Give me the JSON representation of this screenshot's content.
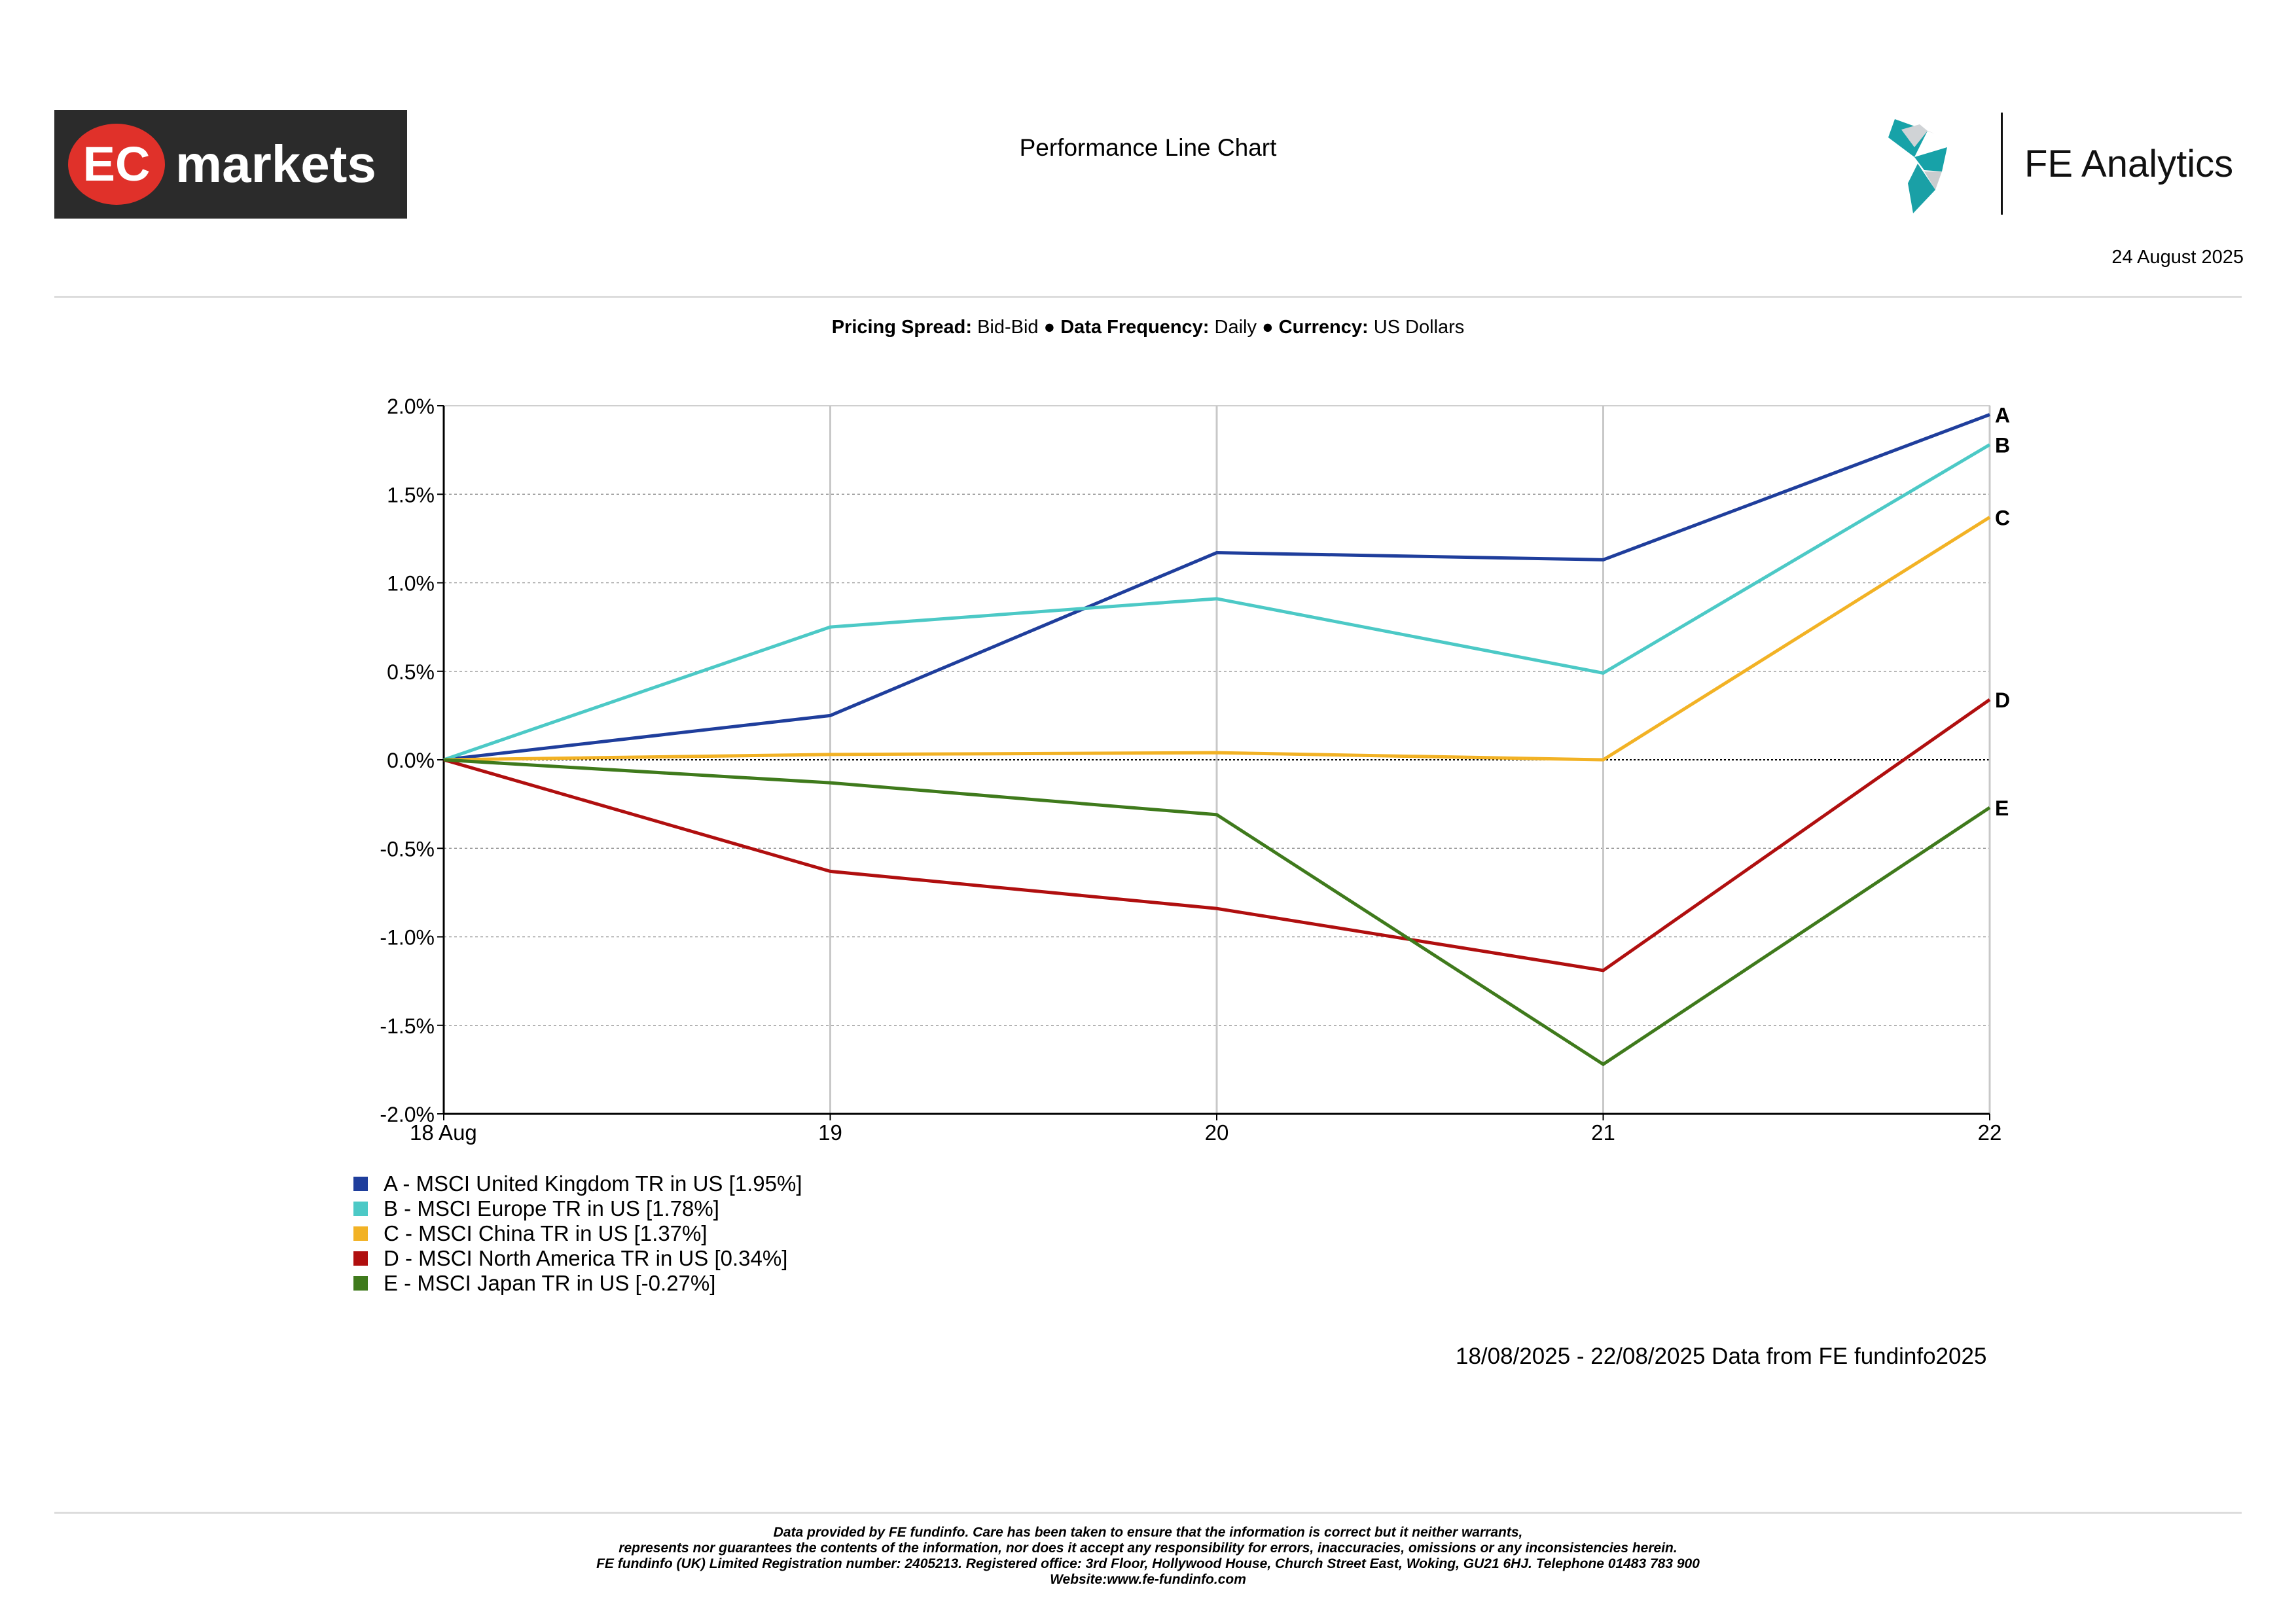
{
  "header": {
    "title": "Performance Line Chart",
    "date": "24 August 2025",
    "logo_left_text_a": "EC",
    "logo_left_text_b": "markets",
    "logo_right_text": "FE Analytics"
  },
  "settings": {
    "pricing_label": "Pricing Spread:",
    "pricing_value": "Bid-Bid",
    "frequency_label": "Data Frequency:",
    "frequency_value": "Daily",
    "currency_label": "Currency:",
    "currency_value": "US Dollars",
    "separator": "●"
  },
  "colors": {
    "A": "#1f3e9c",
    "B": "#4cc9c6",
    "C": "#f2b225",
    "D": "#b00f0f",
    "E": "#3f7a1c"
  },
  "chart_data": {
    "type": "line",
    "x": [
      "18 Aug",
      "19",
      "20",
      "21",
      "22"
    ],
    "ylim": [
      -2.0,
      2.0
    ],
    "yticks": [
      2.0,
      1.5,
      1.0,
      0.5,
      0.0,
      -0.5,
      -1.0,
      -1.5,
      -2.0
    ],
    "ytick_labels": [
      "2.0%",
      "1.5%",
      "1.0%",
      "0.5%",
      "0.0%",
      "-0.5%",
      "-1.0%",
      "-1.5%",
      "-2.0%"
    ],
    "grid": true,
    "legend_position": "bottom-left",
    "series": [
      {
        "key": "A",
        "name": "A - MSCI United Kingdom TR in US [1.95%]",
        "values": [
          0.0,
          0.25,
          1.17,
          1.13,
          1.95
        ]
      },
      {
        "key": "B",
        "name": "B - MSCI Europe TR in US [1.78%]",
        "values": [
          0.0,
          0.75,
          0.91,
          0.49,
          1.78
        ]
      },
      {
        "key": "C",
        "name": "C - MSCI China TR in US [1.37%]",
        "values": [
          0.0,
          0.03,
          0.04,
          0.0,
          1.37
        ]
      },
      {
        "key": "D",
        "name": "D - MSCI North America TR in US [0.34%]",
        "values": [
          0.0,
          -0.63,
          -0.84,
          -1.19,
          0.34
        ]
      },
      {
        "key": "E",
        "name": "E - MSCI Japan TR in US [-0.27%]",
        "values": [
          0.0,
          -0.13,
          -0.31,
          -1.72,
          -0.27
        ]
      }
    ]
  },
  "footer": {
    "source": "18/08/2025 - 22/08/2025 Data from FE fundinfo2025",
    "disclaimer": [
      "Data provided by FE fundinfo. Care has been taken to ensure that the information is correct but it neither warrants,",
      "represents nor guarantees the contents of the information, nor does it accept any responsibility for errors, inaccuracies, omissions or any inconsistencies herein.",
      "FE fundinfo (UK) Limited Registration number: 2405213. Registered office: 3rd Floor, Hollywood House, Church Street East, Woking, GU21 6HJ. Telephone 01483 783 900",
      "Website:www.fe-fundinfo.com"
    ]
  }
}
